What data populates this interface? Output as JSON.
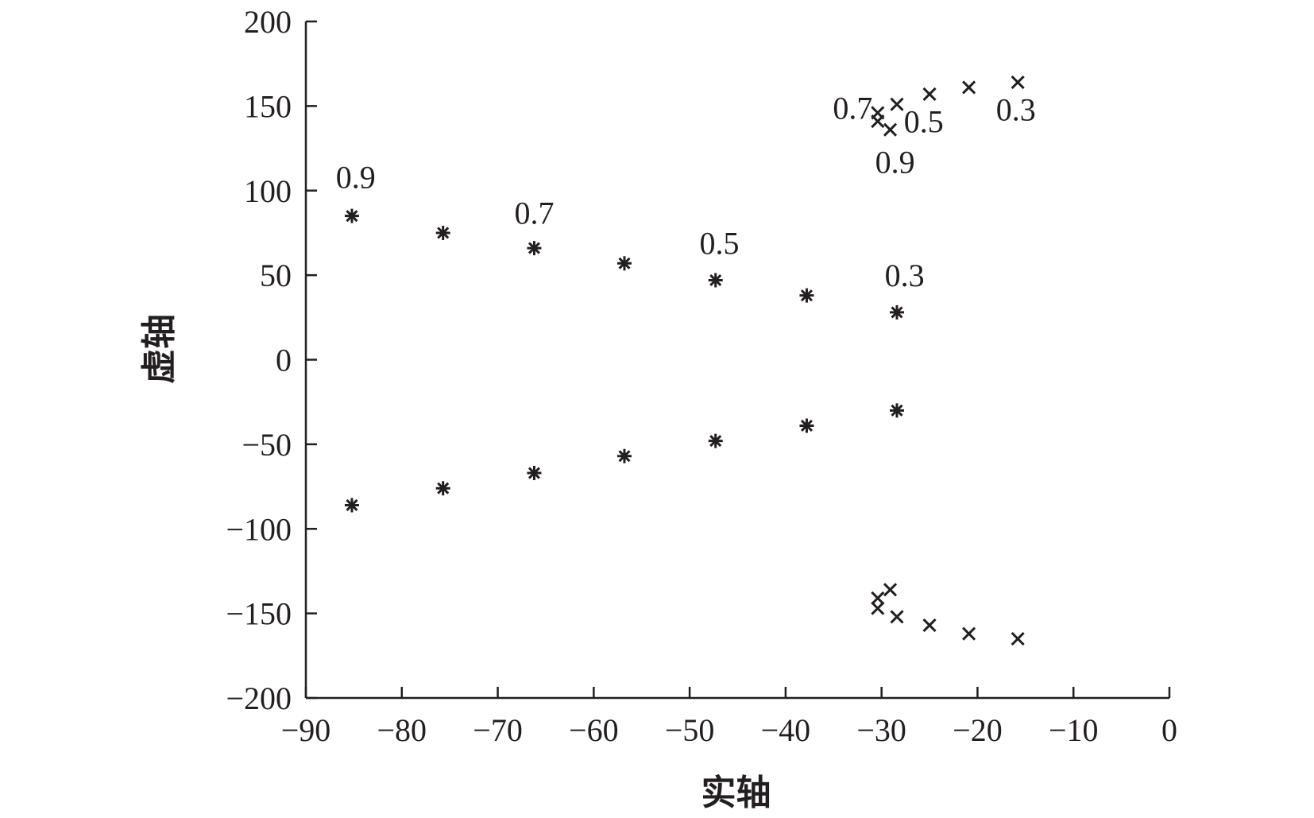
{
  "chart_data": {
    "type": "scatter",
    "title": "",
    "xlabel": "实轴",
    "ylabel": "虚轴",
    "xlim": [
      -90,
      0
    ],
    "ylim": [
      -200,
      200
    ],
    "xticks": [
      -90,
      -80,
      -70,
      -60,
      -50,
      -40,
      -30,
      -20,
      -10,
      0
    ],
    "yticks": [
      200,
      150,
      100,
      50,
      0,
      -50,
      -100,
      -150,
      -200
    ],
    "xtick_labels": [
      "−90",
      "−80",
      "−70",
      "−60",
      "−50",
      "−40",
      "−30",
      "−20",
      "−10",
      "0"
    ],
    "ytick_labels": [
      "200",
      "150",
      "100",
      "50",
      "0",
      "−50",
      "−100",
      "−150",
      "−200"
    ],
    "grid": false,
    "series": [
      {
        "marker": "asterisk",
        "points": [
          [
            -85.2,
            85
          ],
          [
            -75.7,
            75
          ],
          [
            -66.2,
            66
          ],
          [
            -56.8,
            57
          ],
          [
            -47.3,
            47
          ],
          [
            -37.8,
            38
          ],
          [
            -28.4,
            28
          ],
          [
            -85.2,
            -86
          ],
          [
            -75.7,
            -76
          ],
          [
            -66.2,
            -67
          ],
          [
            -56.8,
            -57
          ],
          [
            -47.3,
            -48
          ],
          [
            -37.8,
            -39
          ],
          [
            -28.4,
            -30
          ]
        ]
      },
      {
        "marker": "cross",
        "points": [
          [
            -15.8,
            164
          ],
          [
            -20.9,
            161
          ],
          [
            -25.0,
            157
          ],
          [
            -28.4,
            151
          ],
          [
            -30.4,
            146
          ],
          [
            -30.4,
            141
          ],
          [
            -29.1,
            136
          ],
          [
            -15.8,
            -165
          ],
          [
            -20.9,
            -162
          ],
          [
            -25.0,
            -157
          ],
          [
            -28.4,
            -152
          ],
          [
            -30.4,
            -147
          ],
          [
            -30.4,
            -141
          ],
          [
            -29.1,
            -136
          ]
        ]
      }
    ],
    "annotations": [
      {
        "text": "0.9",
        "x": -84.8,
        "y": 108
      },
      {
        "text": "0.7",
        "x": -66.2,
        "y": 87
      },
      {
        "text": "0.5",
        "x": -46.9,
        "y": 69
      },
      {
        "text": "0.3",
        "x": -27.6,
        "y": 50
      },
      {
        "text": "0.7",
        "x": -33.0,
        "y": 149
      },
      {
        "text": "0.5",
        "x": -25.6,
        "y": 141
      },
      {
        "text": "0.3",
        "x": -16.0,
        "y": 148
      },
      {
        "text": "0.9",
        "x": -28.6,
        "y": 117
      }
    ]
  }
}
